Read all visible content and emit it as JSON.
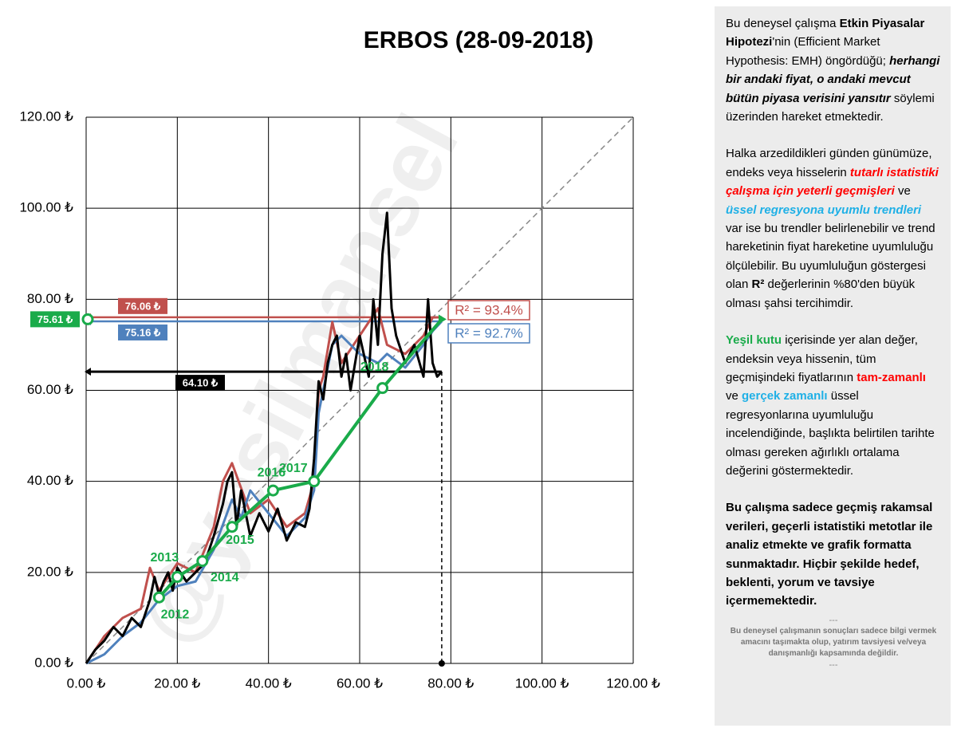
{
  "chart_data": {
    "type": "line",
    "title": "ERBOS (28-09-2018)",
    "watermark": "@yesilmansel",
    "xlim": [
      0,
      120
    ],
    "ylim": [
      0,
      120
    ],
    "xticks": [
      {
        "value": 0,
        "label": "0.00 ₺"
      },
      {
        "value": 20,
        "label": "20.00 ₺"
      },
      {
        "value": 40,
        "label": "40.00 ₺"
      },
      {
        "value": 60,
        "label": "60.00 ₺"
      },
      {
        "value": 80,
        "label": "80.00 ₺"
      },
      {
        "value": 100,
        "label": "100.00 ₺"
      },
      {
        "value": 120,
        "label": "120.00 ₺"
      }
    ],
    "yticks": [
      {
        "value": 0,
        "label": "0.00 ₺"
      },
      {
        "value": 20,
        "label": "20.00 ₺"
      },
      {
        "value": 40,
        "label": "40.00 ₺"
      },
      {
        "value": 60,
        "label": "60.00 ₺"
      },
      {
        "value": 80,
        "label": "80.00 ₺"
      },
      {
        "value": 100,
        "label": "100.00 ₺"
      },
      {
        "value": 120,
        "label": "120.00 ₺"
      }
    ],
    "grid": true,
    "series": [
      {
        "color": "#c0504d",
        "x": [
          0,
          4,
          8,
          12,
          14,
          16,
          20,
          24,
          28,
          30,
          32,
          36,
          40,
          44,
          48,
          50,
          51,
          52,
          54,
          56,
          60,
          64,
          66,
          70,
          74,
          76,
          78
        ],
        "values": [
          0,
          6,
          10,
          12,
          21,
          16,
          22,
          20,
          30,
          40,
          44,
          33,
          36,
          30,
          33,
          40,
          60,
          63,
          75,
          66,
          72,
          78,
          70,
          68,
          72,
          76,
          76.06
        ]
      },
      {
        "color": "#4f81bd",
        "x": [
          0,
          4,
          8,
          12,
          16,
          20,
          24,
          28,
          32,
          34,
          36,
          40,
          44,
          48,
          50,
          51,
          52,
          54,
          56,
          60,
          64,
          66,
          70,
          74,
          76,
          78
        ],
        "values": [
          0,
          2,
          6,
          9,
          14,
          17,
          18,
          25,
          36,
          32,
          38,
          33,
          28,
          32,
          38,
          55,
          60,
          70,
          72,
          68,
          66,
          68,
          65,
          70,
          73,
          75.16
        ]
      },
      {
        "color": "#000000",
        "x": [
          0,
          2,
          4,
          6,
          8,
          10,
          12,
          14,
          15,
          16,
          17,
          18,
          19,
          20,
          22,
          24,
          26,
          28,
          30,
          31,
          32,
          33,
          34,
          36,
          38,
          40,
          42,
          44,
          46,
          48,
          49,
          50,
          51,
          52,
          53,
          54,
          55,
          56,
          57,
          58,
          60,
          62,
          63,
          64,
          65,
          66,
          67,
          68,
          70,
          72,
          74,
          75,
          76,
          77,
          78
        ],
        "values": [
          0,
          3,
          5,
          8,
          6,
          10,
          8,
          14,
          19,
          15,
          18,
          20,
          16,
          21,
          18,
          20,
          22,
          28,
          35,
          40,
          42,
          30,
          38,
          28,
          33,
          29,
          34,
          27,
          31,
          30,
          34,
          45,
          62,
          58,
          66,
          70,
          72,
          63,
          68,
          60,
          72,
          63,
          80,
          70,
          90,
          99,
          78,
          72,
          66,
          70,
          63,
          80,
          66,
          63,
          64.1
        ]
      },
      {
        "color": "#1aab4a",
        "x": [
          16,
          20,
          25.5,
          32,
          41,
          50,
          65,
          78
        ],
        "values": [
          14.5,
          19,
          22.5,
          30,
          38,
          40,
          60.5,
          75.61
        ],
        "point_labels": [
          "2012",
          "2013",
          "2014",
          "2015",
          "2016",
          "2017",
          "2018",
          null
        ]
      }
    ],
    "levels": [
      {
        "label": "76.06 ₺",
        "value": 76.06,
        "color": "#c0504d"
      },
      {
        "label": "75.16 ₺",
        "value": 75.16,
        "color": "#4f81bd"
      },
      {
        "label": "75.61 ₺",
        "value": 75.61,
        "color": "#1aab4a"
      },
      {
        "label": "64.10 ₺",
        "value": 64.1,
        "color": "#000000"
      }
    ],
    "r_squared": [
      {
        "label": "R² = 93.4%",
        "color": "#c0504d"
      },
      {
        "label": "R² = 92.7%",
        "color": "#4f81bd"
      }
    ],
    "current_x": 78
  },
  "panel": {
    "paragraphs": [
      [
        {
          "text": "Bu deneysel çalışma ",
          "style": "normal"
        },
        {
          "text": "Etkin Piyasalar Hipotezi",
          "style": "bold"
        },
        {
          "text": "'nin (Efficient Market Hypothesis: EMH) öngördüğü; ",
          "style": "normal"
        },
        {
          "text": "herhangi bir andaki fiyat, o andaki mevcut bütün piyasa verisini yansıtır",
          "style": "bold-italic"
        },
        {
          "text": "  söylemi üzerinden hareket etmektedir.",
          "style": "normal"
        }
      ],
      [
        {
          "text": "Halka arzedildikleri günden günümüze, endeks veya hisselerin ",
          "style": "normal"
        },
        {
          "text": "tutarlı istatistiki çalışma için yeterli geçmişleri",
          "style": "red-bold-italic"
        },
        {
          "text": " ve ",
          "style": "normal"
        },
        {
          "text": "üssel regresyona uyumlu trendleri",
          "style": "cyan-bold-italic"
        },
        {
          "text": " var ise bu trendler belirlenebilir ve trend hareketinin fiyat hareketine uyumluluğu ölçülebilir.  Bu uyumluluğun göstergesi olan ",
          "style": "normal"
        },
        {
          "text": "R²",
          "style": "bold"
        },
        {
          "text": " değerlerinin %80'den büyük olması şahsi tercihimdir.",
          "style": "normal"
        }
      ],
      [
        {
          "text": "Yeşil kutu",
          "style": "green-bold"
        },
        {
          "text": " içerisinde yer alan değer, endeksin veya hissenin, tüm geçmişindeki fiyatlarının ",
          "style": "normal"
        },
        {
          "text": "tam-zamanlı",
          "style": "red-bold"
        },
        {
          "text": " ve ",
          "style": "normal"
        },
        {
          "text": "gerçek zamanlı",
          "style": "cyan-bold"
        },
        {
          "text": " üssel regresyonlarına uyumluluğu incelendiğinde, başlıkta belirtilen tarihte olması gereken ağırlıklı ortalama değerini göstermektedir.",
          "style": "normal"
        }
      ],
      [
        {
          "text": "Bu çalışma sadece geçmiş rakamsal verileri, geçerli istatistiki metotlar ile  analiz etmekte ve grafik formatta sunmaktadır. Hiçbir şekilde hedef, beklenti, yorum ve tavsiye içermemektedir.",
          "style": "bold"
        }
      ]
    ],
    "separator": "---",
    "disclaimer": "Bu deneysel çalışmanın sonuçları sadece bilgi vermek amacını taşımakta olup, yatırım tavsiyesi ve/veya danışmanlığı kapsamında değildir."
  }
}
